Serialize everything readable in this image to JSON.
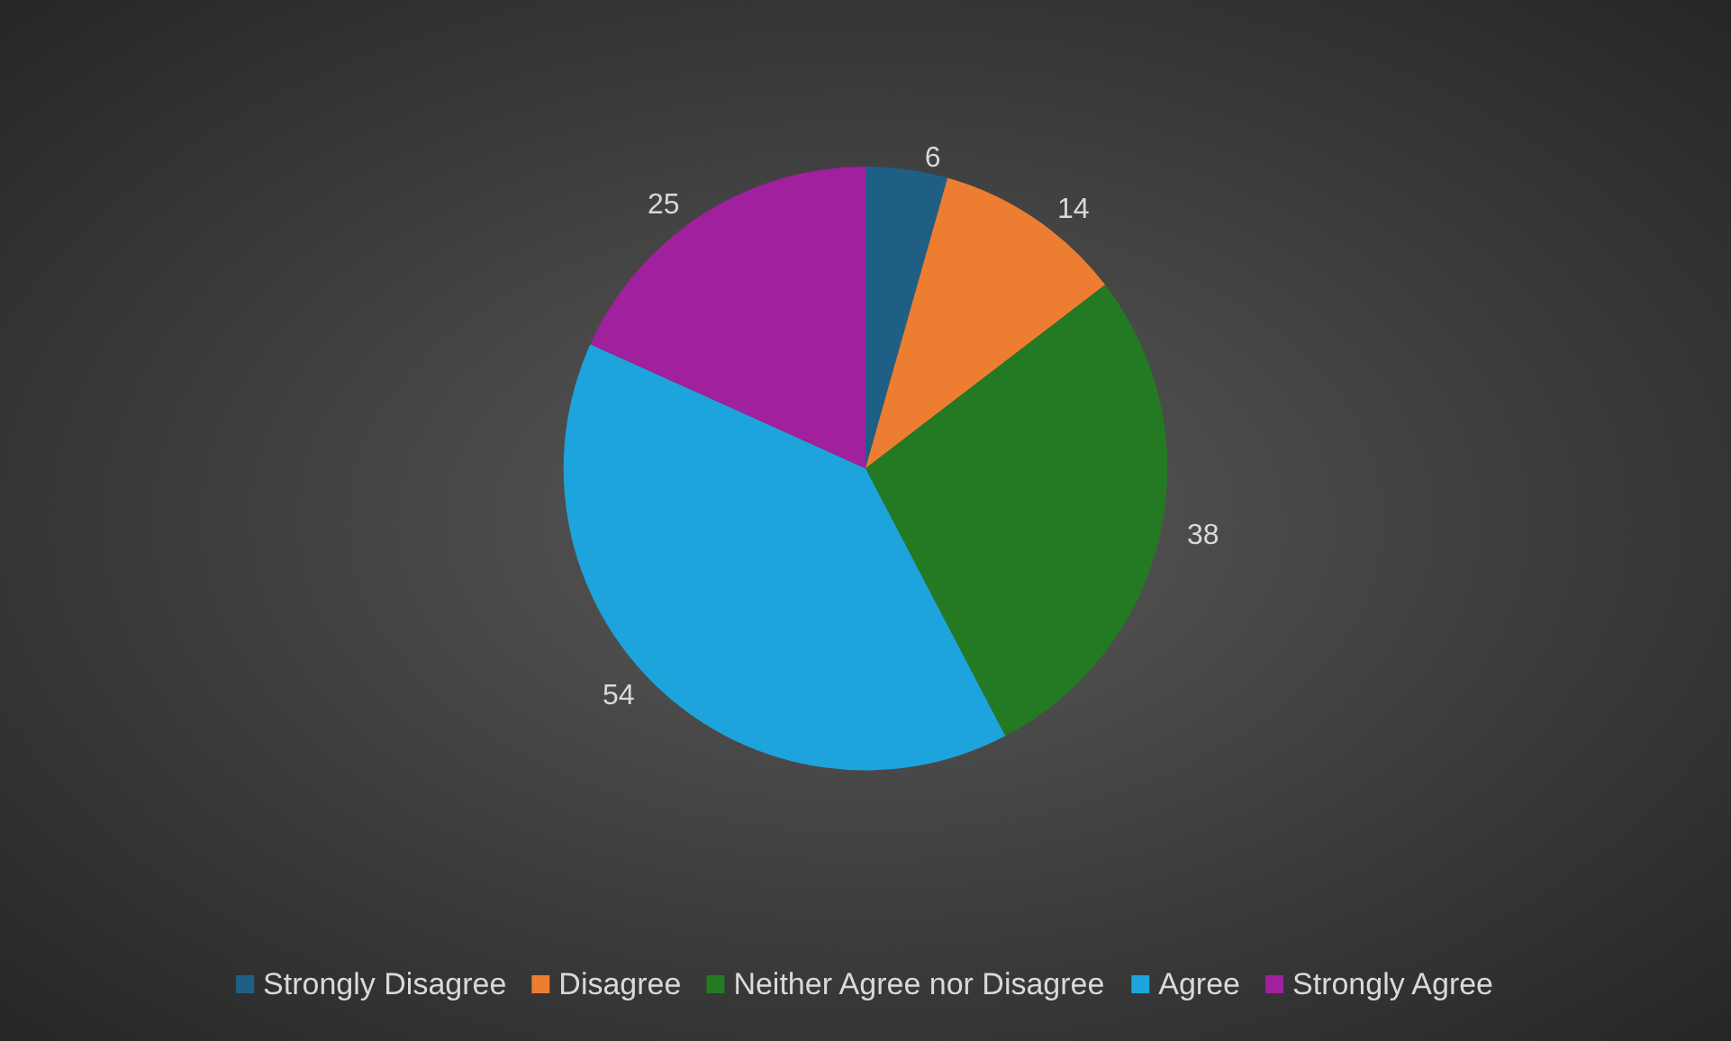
{
  "chart_data": {
    "type": "pie",
    "categories": [
      "Strongly Disagree",
      "Disagree",
      "Neither Agree nor Disagree",
      "Agree",
      "Strongly Agree"
    ],
    "values": [
      6,
      14,
      38,
      54,
      25
    ],
    "colors": [
      "#1f5f86",
      "#ed7d31",
      "#237a23",
      "#1ea4dc",
      "#a0209e"
    ],
    "data_labels": true,
    "legend": "bottom"
  }
}
